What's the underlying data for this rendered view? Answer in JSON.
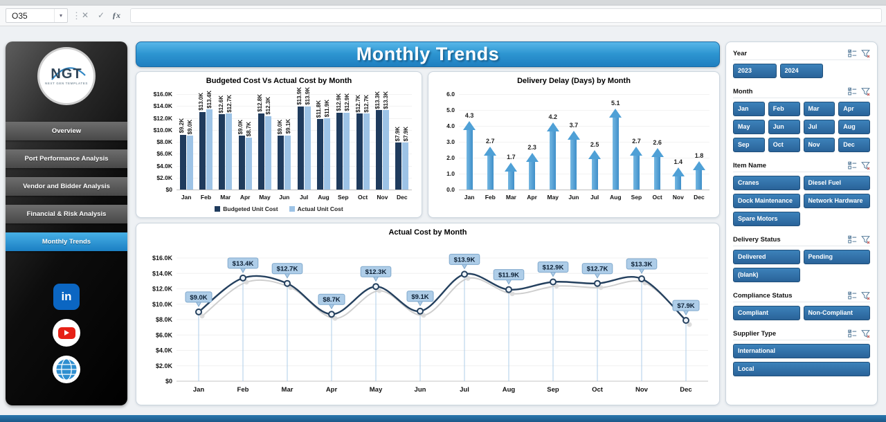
{
  "formula_bar": {
    "name_box": "O35",
    "formula": "",
    "icons": {
      "dropdown": "▾",
      "separator": "⋮",
      "cancel": "✕",
      "enter": "✓",
      "insert_function": "ƒx"
    }
  },
  "sidebar": {
    "logo": {
      "text": "NGT",
      "subtext": "NEXT GEN TEMPLATES"
    },
    "items": [
      {
        "label": "Overview",
        "active": false
      },
      {
        "label": "Port Performance Analysis",
        "active": false
      },
      {
        "label": "Vendor and Bidder Analysis",
        "active": false
      },
      {
        "label": "Financial & Risk Analysis",
        "active": false
      },
      {
        "label": "Monthly Trends",
        "active": true
      }
    ],
    "social": [
      {
        "name": "linkedin",
        "label": "in"
      },
      {
        "name": "youtube",
        "label": ""
      },
      {
        "name": "website",
        "label": ""
      }
    ]
  },
  "page_title": "Monthly Trends",
  "colors": {
    "accent_blue": "#2B8FCE",
    "banner_top": "#58B7E9",
    "banner_bottom": "#1F7FC0",
    "slicer_button": "#2E6DA3",
    "bar_budgeted": "#1F3B5D",
    "bar_actual": "#9DC3E6",
    "arrow": "#4FA0D6",
    "line": "#24405E"
  },
  "chart_data": [
    {
      "type": "bar",
      "title": "Budgeted Cost Vs Actual Cost by Month",
      "categories": [
        "Jan",
        "Feb",
        "Mar",
        "Apr",
        "May",
        "Jun",
        "Jul",
        "Aug",
        "Sep",
        "Oct",
        "Nov",
        "Dec"
      ],
      "series": [
        {
          "name": "Budgeted Unit Cost",
          "color": "#1F3B5D",
          "values": [
            9.2,
            13.0,
            12.6,
            9.0,
            12.8,
            9.0,
            13.9,
            11.8,
            12.9,
            12.7,
            13.3,
            7.9
          ],
          "labels": [
            "$9.2K",
            "$13.0K",
            "$12.6K",
            "$9.0K",
            "$12.8K",
            "$9.0K",
            "$13.9K",
            "$11.8K",
            "$12.9K",
            "$12.7K",
            "$13.3K",
            "$7.9K"
          ]
        },
        {
          "name": "Actual Unit Cost",
          "color": "#9DC3E6",
          "values": [
            9.0,
            13.4,
            12.7,
            8.7,
            12.3,
            9.1,
            13.9,
            11.9,
            12.9,
            12.7,
            13.3,
            7.9
          ],
          "labels": [
            "$9.0K",
            "$13.4K",
            "$12.7K",
            "$8.7K",
            "$12.3K",
            "$9.1K",
            "$13.9K",
            "$11.9K",
            "$12.9K",
            "$12.7K",
            "$13.3K",
            "$7.9K"
          ]
        }
      ],
      "ylim": [
        0,
        16
      ],
      "yticks": [
        "$0",
        "$2.0K",
        "$4.0K",
        "$6.0K",
        "$8.0K",
        "$10.0K",
        "$12.0K",
        "$14.0K",
        "$16.0K"
      ],
      "legend_position": "bottom",
      "grid": false
    },
    {
      "type": "bar",
      "subtype": "up-arrow",
      "title": "Delivery Delay (Days) by Month",
      "categories": [
        "Jan",
        "Feb",
        "Mar",
        "Apr",
        "May",
        "Jun",
        "Jul",
        "Aug",
        "Sep",
        "Oct",
        "Nov",
        "Dec"
      ],
      "values": [
        4.3,
        2.7,
        1.7,
        2.3,
        4.2,
        3.7,
        2.5,
        5.1,
        2.7,
        2.6,
        1.4,
        1.8
      ],
      "labels": [
        "4.3",
        "2.7",
        "1.7",
        "2.3",
        "4.2",
        "3.7",
        "2.5",
        "5.1",
        "2.7",
        "2.6",
        "1.4",
        "1.8"
      ],
      "ylim": [
        0,
        6
      ],
      "yticks": [
        "0.0",
        "1.0",
        "2.0",
        "3.0",
        "4.0",
        "5.0",
        "6.0"
      ],
      "color": "#4FA0D6",
      "grid": false
    },
    {
      "type": "line",
      "title": "Actual Cost by Month",
      "categories": [
        "Jan",
        "Feb",
        "Mar",
        "Apr",
        "May",
        "Jun",
        "Jul",
        "Aug",
        "Sep",
        "Oct",
        "Nov",
        "Dec"
      ],
      "values": [
        9.0,
        13.4,
        12.7,
        8.7,
        12.3,
        9.1,
        13.9,
        11.9,
        12.9,
        12.7,
        13.3,
        7.9
      ],
      "labels": [
        "$9.0K",
        "$13.4K",
        "$12.7K",
        "$8.7K",
        "$12.3K",
        "$9.1K",
        "$13.9K",
        "$11.9K",
        "$12.9K",
        "$12.7K",
        "$13.3K",
        "$7.9K"
      ],
      "ylim": [
        0,
        16
      ],
      "yticks": [
        "$0",
        "$2.0K",
        "$4.0K",
        "$6.0K",
        "$8.0K",
        "$10.0K",
        "$12.0K",
        "$14.0K",
        "$16.0K"
      ],
      "line_color": "#24405E",
      "label_bg": "#AECDE8",
      "grid": false
    }
  ],
  "slicers": [
    {
      "title": "Year",
      "cols": 3,
      "buttons": [
        "2023",
        "2024"
      ]
    },
    {
      "title": "Month",
      "cols": 4,
      "buttons": [
        "Jan",
        "Feb",
        "Mar",
        "Apr",
        "May",
        "Jun",
        "Jul",
        "Aug",
        "Sep",
        "Oct",
        "Nov",
        "Dec"
      ]
    },
    {
      "title": "Item Name",
      "cols": 2,
      "buttons": [
        "Cranes",
        "Diesel Fuel",
        "Dock Maintenance",
        "Network Hardware",
        "Spare Motors"
      ]
    },
    {
      "title": "Delivery Status",
      "cols": 2,
      "buttons": [
        "Delivered",
        "Pending",
        "(blank)"
      ]
    },
    {
      "title": "Compliance Status",
      "cols": 2,
      "buttons": [
        "Compliant",
        "Non-Compliant"
      ]
    },
    {
      "title": "Supplier Type",
      "cols": 1,
      "buttons": [
        "International",
        "Local"
      ]
    }
  ]
}
